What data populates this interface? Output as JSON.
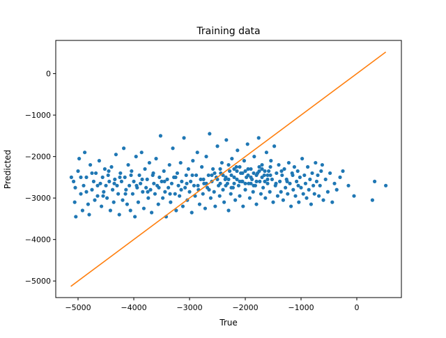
{
  "chart_data": {
    "type": "scatter",
    "title": "Training data",
    "xlabel": "True",
    "ylabel": "Predicted",
    "xlim": [
      -5400,
      800
    ],
    "ylim": [
      -5400,
      800
    ],
    "xticks": [
      -5000,
      -4000,
      -3000,
      -2000,
      -1000,
      0
    ],
    "yticks": [
      -5000,
      -4000,
      -3000,
      -2000,
      -1000,
      0
    ],
    "xtick_labels": [
      "−5000",
      "−4000",
      "−3000",
      "−2000",
      "−1000",
      "0"
    ],
    "ytick_labels": [
      "−5000",
      "−4000",
      "−3000",
      "−2000",
      "−1000",
      "0"
    ],
    "grid": false,
    "legend": "none",
    "series": [
      {
        "kind": "scatter",
        "color": "#1f77b4",
        "points": [
          [
            -5120,
            -2500
          ],
          [
            -5080,
            -2600
          ],
          [
            -5050,
            -2750
          ],
          [
            -5060,
            -3100
          ],
          [
            -5040,
            -3450
          ],
          [
            -5000,
            -2350
          ],
          [
            -4980,
            -2050
          ],
          [
            -4950,
            -2900
          ],
          [
            -4920,
            -3300
          ],
          [
            -4900,
            -2700
          ],
          [
            -4880,
            -1900
          ],
          [
            -4850,
            -2500
          ],
          [
            -4820,
            -3150
          ],
          [
            -4800,
            -3400
          ],
          [
            -4780,
            -2200
          ],
          [
            -4750,
            -2800
          ],
          [
            -4720,
            -2600
          ],
          [
            -4700,
            -3050
          ],
          [
            -4680,
            -2400
          ],
          [
            -4650,
            -2950
          ],
          [
            -4620,
            -2100
          ],
          [
            -4600,
            -2650
          ],
          [
            -4580,
            -3200
          ],
          [
            -4560,
            -2500
          ],
          [
            -4540,
            -2850
          ],
          [
            -4520,
            -2300
          ],
          [
            -4500,
            -2700
          ],
          [
            -4480,
            -3000
          ],
          [
            -4460,
            -2450
          ],
          [
            -4440,
            -2600
          ],
          [
            -4420,
            -3300
          ],
          [
            -4400,
            -2250
          ],
          [
            -4380,
            -2800
          ],
          [
            -4360,
            -3100
          ],
          [
            -4340,
            -2550
          ],
          [
            -4320,
            -1950
          ],
          [
            -4300,
            -2700
          ],
          [
            -4280,
            -2900
          ],
          [
            -4260,
            -3400
          ],
          [
            -4240,
            -2400
          ],
          [
            -4220,
            -2600
          ],
          [
            -4200,
            -3050
          ],
          [
            -4180,
            -1800
          ],
          [
            -4160,
            -2500
          ],
          [
            -4140,
            -2800
          ],
          [
            -4120,
            -3150
          ],
          [
            -4100,
            -2200
          ],
          [
            -4080,
            -2700
          ],
          [
            -4060,
            -3300
          ],
          [
            -4040,
            -2350
          ],
          [
            -4020,
            -2900
          ],
          [
            -4000,
            -2600
          ],
          [
            -3980,
            -3450
          ],
          [
            -3960,
            -2000
          ],
          [
            -3940,
            -2750
          ],
          [
            -3920,
            -3100
          ],
          [
            -3900,
            -2450
          ],
          [
            -3880,
            -2650
          ],
          [
            -3860,
            -1900
          ],
          [
            -3840,
            -2850
          ],
          [
            -3820,
            -3250
          ],
          [
            -3800,
            -2300
          ],
          [
            -3780,
            -2750
          ],
          [
            -3760,
            -2550
          ],
          [
            -3740,
            -3000
          ],
          [
            -3720,
            -2150
          ],
          [
            -3700,
            -2800
          ],
          [
            -3680,
            -3350
          ],
          [
            -3660,
            -2450
          ],
          [
            -3640,
            -2650
          ],
          [
            -3620,
            -2900
          ],
          [
            -3600,
            -2050
          ],
          [
            -3580,
            -2700
          ],
          [
            -3560,
            -3150
          ],
          [
            -3540,
            -2500
          ],
          [
            -3520,
            -1500
          ],
          [
            -3500,
            -2600
          ],
          [
            -3480,
            -3000
          ],
          [
            -3460,
            -2350
          ],
          [
            -3440,
            -2850
          ],
          [
            -3420,
            -3450
          ],
          [
            -3400,
            -2550
          ],
          [
            -3380,
            -2750
          ],
          [
            -3360,
            -2200
          ],
          [
            -3340,
            -3100
          ],
          [
            -3320,
            -2650
          ],
          [
            -3300,
            -1800
          ],
          [
            -3280,
            -2500
          ],
          [
            -3260,
            -2900
          ],
          [
            -3240,
            -3300
          ],
          [
            -3220,
            -2400
          ],
          [
            -3200,
            -2700
          ],
          [
            -3180,
            -2950
          ],
          [
            -3160,
            -2150
          ],
          [
            -3140,
            -2600
          ],
          [
            -3120,
            -3200
          ],
          [
            -3100,
            -1550
          ],
          [
            -3080,
            -2750
          ],
          [
            -3060,
            -2450
          ],
          [
            -3040,
            -3050
          ],
          [
            -3020,
            -2300
          ],
          [
            -3000,
            -2850
          ],
          [
            -2980,
            -2600
          ],
          [
            -2960,
            -3350
          ],
          [
            -2940,
            -2100
          ],
          [
            -2920,
            -2700
          ],
          [
            -2900,
            -2950
          ],
          [
            -2880,
            -2450
          ],
          [
            -2860,
            -1900
          ],
          [
            -2840,
            -2800
          ],
          [
            -2820,
            -3150
          ],
          [
            -2800,
            -2550
          ],
          [
            -2780,
            -2250
          ],
          [
            -2760,
            -2900
          ],
          [
            -2740,
            -2650
          ],
          [
            -2720,
            -3250
          ],
          [
            -2700,
            -2000
          ],
          [
            -2680,
            -2750
          ],
          [
            -2660,
            -2450
          ],
          [
            -2640,
            -1450
          ],
          [
            -2620,
            -3000
          ],
          [
            -2600,
            -2600
          ],
          [
            -2580,
            -2300
          ],
          [
            -2560,
            -2850
          ],
          [
            -2540,
            -3200
          ],
          [
            -2520,
            -2500
          ],
          [
            -2500,
            -1750
          ],
          [
            -2480,
            -2700
          ],
          [
            -2460,
            -2950
          ],
          [
            -2440,
            -2400
          ],
          [
            -2420,
            -2150
          ],
          [
            -2400,
            -2800
          ],
          [
            -2380,
            -3100
          ],
          [
            -2360,
            -2550
          ],
          [
            -2340,
            -1600
          ],
          [
            -2320,
            -2650
          ],
          [
            -2300,
            -3300
          ],
          [
            -2280,
            -2350
          ],
          [
            -2260,
            -2900
          ],
          [
            -2240,
            -2050
          ],
          [
            -2220,
            -2750
          ],
          [
            -2200,
            -2500
          ],
          [
            -2180,
            -3050
          ],
          [
            -2160,
            -2250
          ],
          [
            -2140,
            -1850
          ],
          [
            -2120,
            -2700
          ],
          [
            -2100,
            -2950
          ],
          [
            -2080,
            -2400
          ],
          [
            -2060,
            -2600
          ],
          [
            -2040,
            -3200
          ],
          [
            -2020,
            -2100
          ],
          [
            -2000,
            -2800
          ],
          [
            -1980,
            -2500
          ],
          [
            -1960,
            -1700
          ],
          [
            -1940,
            -2650
          ],
          [
            -1920,
            -3000
          ],
          [
            -1900,
            -2300
          ],
          [
            -1880,
            -2550
          ],
          [
            -1860,
            -2850
          ],
          [
            -1840,
            -2000
          ],
          [
            -1820,
            -2700
          ],
          [
            -1800,
            -3150
          ],
          [
            -1780,
            -2400
          ],
          [
            -1760,
            -1550
          ],
          [
            -1740,
            -2600
          ],
          [
            -1720,
            -2900
          ],
          [
            -1700,
            -2200
          ],
          [
            -1680,
            -2750
          ],
          [
            -1660,
            -2450
          ],
          [
            -1640,
            -3000
          ],
          [
            -1620,
            -1900
          ],
          [
            -1600,
            -2650
          ],
          [
            -1580,
            -2350
          ],
          [
            -1560,
            -2850
          ],
          [
            -1540,
            -2100
          ],
          [
            -1520,
            -2550
          ],
          [
            -1500,
            -3100
          ],
          [
            -1480,
            -1750
          ],
          [
            -1460,
            -2700
          ],
          [
            -1440,
            -2400
          ],
          [
            -1420,
            -2950
          ],
          [
            -1400,
            -2200
          ],
          [
            -1380,
            -2600
          ],
          [
            -1360,
            -2850
          ],
          [
            -1340,
            -2450
          ],
          [
            -1320,
            -3050
          ],
          [
            -1300,
            -2300
          ],
          [
            -1280,
            -2750
          ],
          [
            -1260,
            -2550
          ],
          [
            -1240,
            -2900
          ],
          [
            -1220,
            -2150
          ],
          [
            -1200,
            -2650
          ],
          [
            -1180,
            -3200
          ],
          [
            -1160,
            -2400
          ],
          [
            -1140,
            -2800
          ],
          [
            -1120,
            -2250
          ],
          [
            -1100,
            -2950
          ],
          [
            -1080,
            -2600
          ],
          [
            -1060,
            -2350
          ],
          [
            -1040,
            -3100
          ],
          [
            -1020,
            -2500
          ],
          [
            -1000,
            -2750
          ],
          [
            -980,
            -2050
          ],
          [
            -960,
            -2900
          ],
          [
            -940,
            -2450
          ],
          [
            -920,
            -2650
          ],
          [
            -900,
            -3000
          ],
          [
            -880,
            -2250
          ],
          [
            -860,
            -2800
          ],
          [
            -840,
            -2550
          ],
          [
            -820,
            -3150
          ],
          [
            -800,
            -2400
          ],
          [
            -780,
            -2700
          ],
          [
            -760,
            -2900
          ],
          [
            -740,
            -2150
          ],
          [
            -720,
            -2600
          ],
          [
            -700,
            -2450
          ],
          [
            -680,
            -2950
          ],
          [
            -660,
            -2700
          ],
          [
            -640,
            -2350
          ],
          [
            -620,
            -2200
          ],
          [
            -600,
            -3050
          ],
          [
            -560,
            -2550
          ],
          [
            -520,
            -2850
          ],
          [
            -480,
            -2400
          ],
          [
            -440,
            -3100
          ],
          [
            -400,
            -2650
          ],
          [
            -360,
            -2800
          ],
          [
            -300,
            -2500
          ],
          [
            -250,
            -2350
          ],
          [
            -150,
            -2700
          ],
          [
            -50,
            -2950
          ],
          [
            280,
            -3050
          ],
          [
            320,
            -2600
          ],
          [
            520,
            -2700
          ],
          [
            -4950,
            -2500
          ],
          [
            -4850,
            -2850
          ],
          [
            -4750,
            -2400
          ],
          [
            -4650,
            -2700
          ],
          [
            -4550,
            -2950
          ],
          [
            -4450,
            -2350
          ],
          [
            -4350,
            -2650
          ],
          [
            -4250,
            -2500
          ],
          [
            -4150,
            -2900
          ],
          [
            -4050,
            -2450
          ],
          [
            -3950,
            -2700
          ],
          [
            -3850,
            -2550
          ],
          [
            -3750,
            -2850
          ],
          [
            -3650,
            -2400
          ],
          [
            -3550,
            -2750
          ],
          [
            -3450,
            -2600
          ],
          [
            -3350,
            -2900
          ],
          [
            -3250,
            -2500
          ],
          [
            -3150,
            -2800
          ],
          [
            -3050,
            -2650
          ],
          [
            -2950,
            -2450
          ],
          [
            -2850,
            -2700
          ],
          [
            -2750,
            -2550
          ],
          [
            -2650,
            -2800
          ],
          [
            -2550,
            -2400
          ],
          [
            -2450,
            -2650
          ],
          [
            -2350,
            -2500
          ],
          [
            -2250,
            -2750
          ],
          [
            -2150,
            -2350
          ],
          [
            -2050,
            -2600
          ],
          [
            -1950,
            -2450
          ],
          [
            -1850,
            -2700
          ],
          [
            -1750,
            -2350
          ],
          [
            -1650,
            -2600
          ],
          [
            -1550,
            -2450
          ],
          [
            -1450,
            -2650
          ],
          [
            -1350,
            -2350
          ],
          [
            -1250,
            -2600
          ],
          [
            -1150,
            -2450
          ],
          [
            -1050,
            -2700
          ],
          [
            -2500,
            -2550
          ],
          [
            -2450,
            -2300
          ],
          [
            -2400,
            -2450
          ],
          [
            -2350,
            -2700
          ],
          [
            -2300,
            -2200
          ],
          [
            -2250,
            -2450
          ],
          [
            -2200,
            -2650
          ],
          [
            -2150,
            -2550
          ],
          [
            -2100,
            -2250
          ],
          [
            -2050,
            -2400
          ],
          [
            -2000,
            -2650
          ],
          [
            -1950,
            -2300
          ],
          [
            -1900,
            -2500
          ],
          [
            -1850,
            -2400
          ],
          [
            -1800,
            -2600
          ],
          [
            -1750,
            -2250
          ],
          [
            -1700,
            -2500
          ],
          [
            -1650,
            -2350
          ],
          [
            -1600,
            -2550
          ],
          [
            -1550,
            -2250
          ],
          [
            -2300,
            -2550
          ],
          [
            -2200,
            -2300
          ],
          [
            -2100,
            -2600
          ],
          [
            -2000,
            -2350
          ],
          [
            -1900,
            -2650
          ],
          [
            -1800,
            -2450
          ],
          [
            -1700,
            -2300
          ],
          [
            -1600,
            -2450
          ],
          [
            -2600,
            -2450
          ],
          [
            -2700,
            -2650
          ]
        ]
      },
      {
        "kind": "line",
        "color": "#ff7f0e",
        "points": [
          [
            -5130,
            -5130
          ],
          [
            520,
            520
          ]
        ]
      }
    ]
  }
}
